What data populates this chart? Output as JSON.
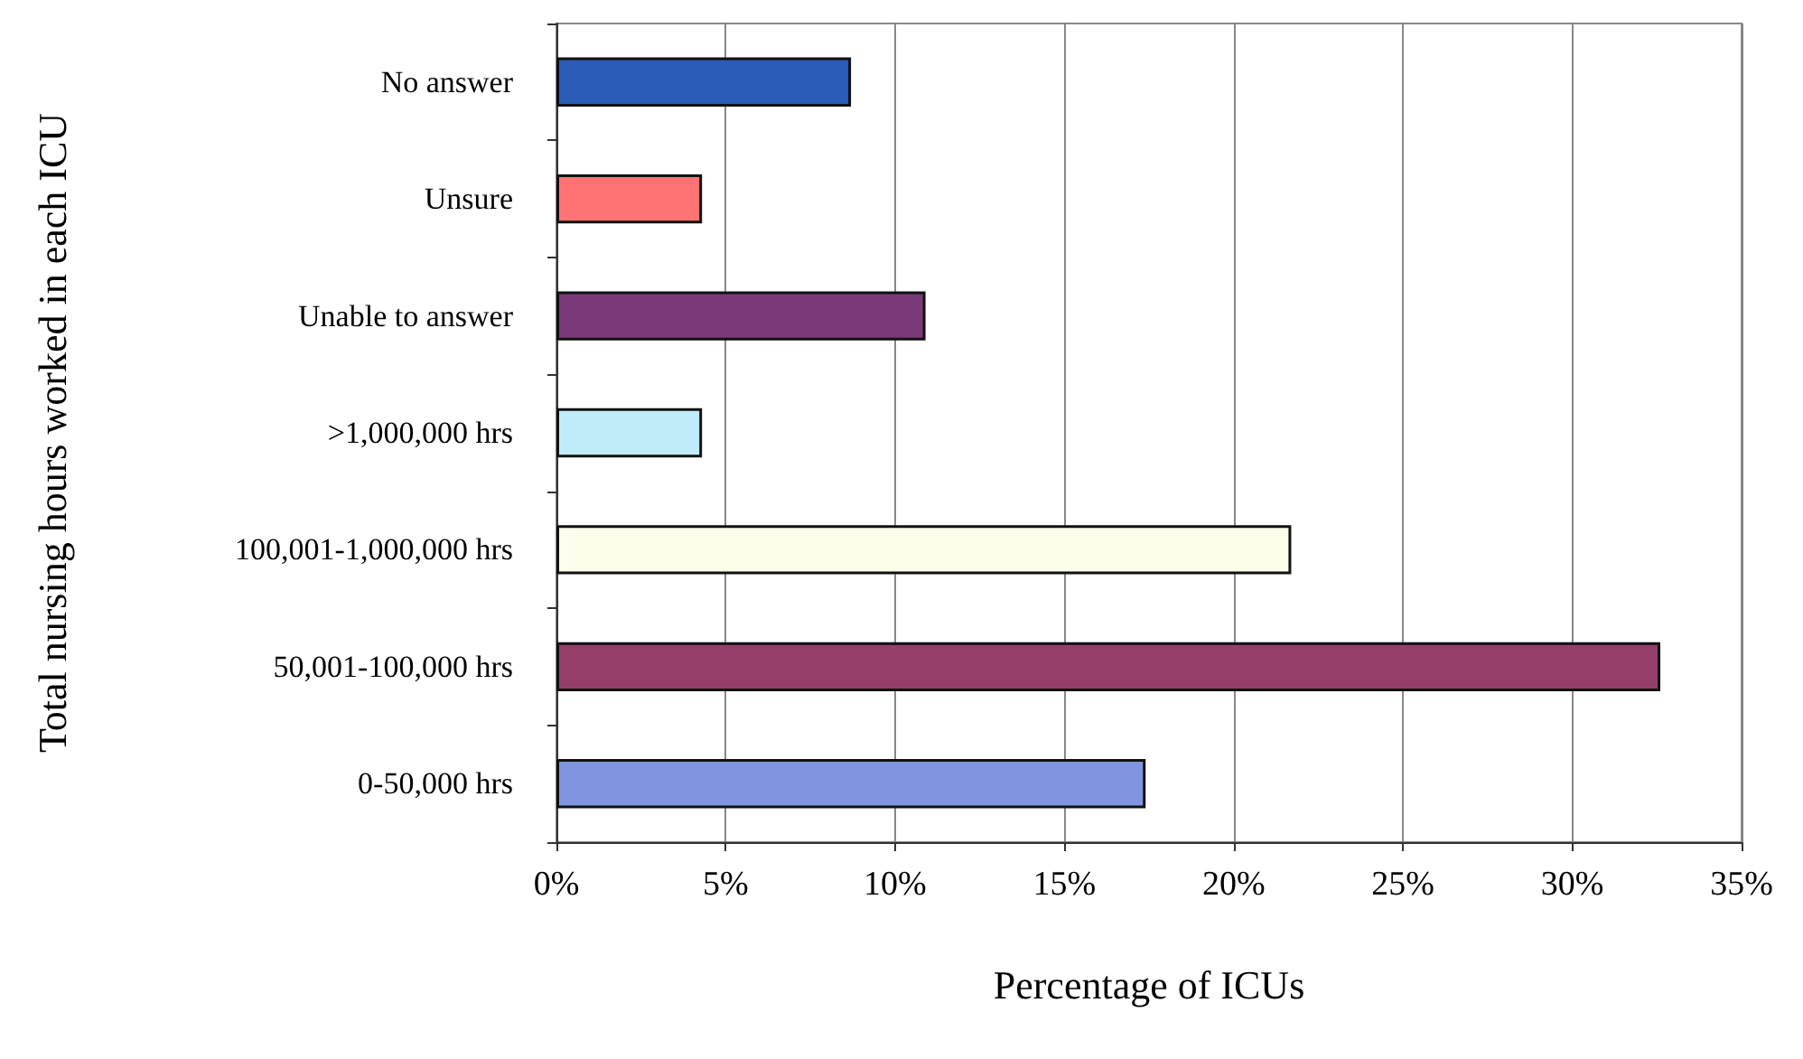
{
  "chart_data": {
    "type": "bar",
    "orientation": "horizontal",
    "xlabel": "Percentage of ICUs",
    "ylabel": "Total nursing hours worked in each ICU",
    "categories": [
      "No answer",
      "Unsure",
      "Unable to answer",
      ">1,000,000 hrs",
      "100,001-1,000,000 hrs",
      "50,001-100,000 hrs",
      "0-50,000 hrs"
    ],
    "values": [
      8.7,
      4.3,
      10.9,
      4.3,
      21.7,
      32.6,
      17.4
    ],
    "colors": [
      "#2a5cb8",
      "#ff7373",
      "#7a3a78",
      "#c0ecfa",
      "#fdfdec",
      "#963e6a",
      "#7f95df"
    ],
    "xlim": [
      0,
      35
    ],
    "xticks": [
      {
        "value": 0,
        "label": "0%"
      },
      {
        "value": 5,
        "label": "5%"
      },
      {
        "value": 10,
        "label": "10%"
      },
      {
        "value": 15,
        "label": "15%"
      },
      {
        "value": 20,
        "label": "20%"
      },
      {
        "value": 25,
        "label": "25%"
      },
      {
        "value": 30,
        "label": "30%"
      },
      {
        "value": 35,
        "label": "35%"
      }
    ],
    "grid": "x"
  }
}
